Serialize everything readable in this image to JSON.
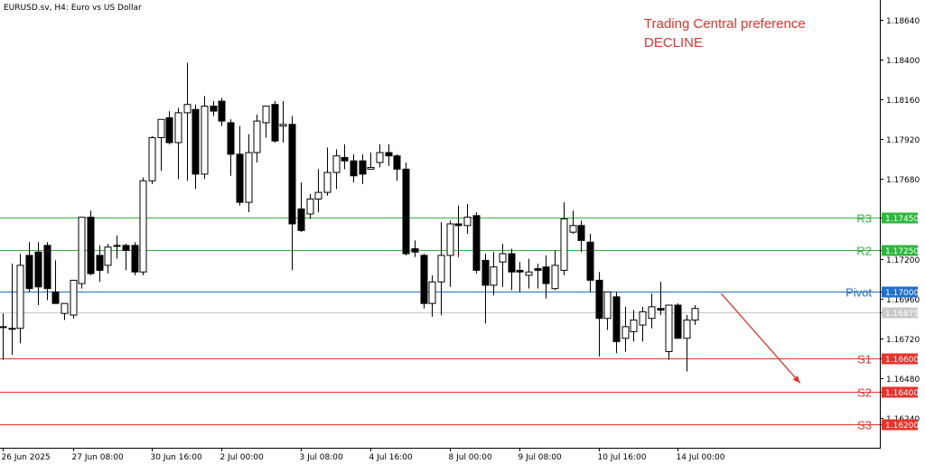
{
  "header": {
    "symbol": "EURUSD.sv, H4:  Euro vs US Dollar"
  },
  "annotation": {
    "line1": "Trading Central preference",
    "line2": "DECLINE",
    "color": "#e8322a"
  },
  "colors": {
    "support": "#e8322a",
    "resistance": "#2db83d",
    "pivot": "#1e6fd0",
    "current": "#c8c8c8",
    "axis": "#000000"
  },
  "chart_data": {
    "type": "candlestick",
    "ylim": [
      1.1606,
      1.1876
    ],
    "y_ticks": [
      "1.18640",
      "1.18400",
      "1.18160",
      "1.17920",
      "1.17680",
      "1.17450",
      "1.17250",
      "1.17200",
      "1.17000",
      "1.16960",
      "1.16875",
      "1.16720",
      "1.16600",
      "1.16480",
      "1.16400",
      "1.16240",
      "1.16200"
    ],
    "x_labels": [
      "26 Jun 2025",
      "27 Jun 08:00",
      "30 Jun 16:00",
      "2 Jul 00:00",
      "3 Jul 08:00",
      "4 Jul 16:00",
      "8 Jul 00:00",
      "9 Jul 08:00",
      "10 Jul 16:00",
      "14 Jul 00:00"
    ],
    "levels": [
      {
        "name": "R3",
        "value": 1.1745,
        "label": "1.17450",
        "kind": "resistance"
      },
      {
        "name": "R2",
        "value": 1.1725,
        "label": "1.17250",
        "kind": "resistance"
      },
      {
        "name": "Pivot",
        "value": 1.17,
        "label": "1.17000",
        "kind": "pivot"
      },
      {
        "name": "S1",
        "value": 1.166,
        "label": "1.16600",
        "kind": "support"
      },
      {
        "name": "S2",
        "value": 1.164,
        "label": "1.16400",
        "kind": "support"
      },
      {
        "name": "S3",
        "value": 1.162,
        "label": "1.16200",
        "kind": "support"
      }
    ],
    "current_price": {
      "value": 1.16875,
      "label": "1.16875"
    },
    "candles": [
      {
        "o": 1.1679,
        "h": 1.1687,
        "l": 1.1659,
        "c": 1.1679
      },
      {
        "o": 1.1678,
        "h": 1.1717,
        "l": 1.1662,
        "c": 1.1678
      },
      {
        "o": 1.1678,
        "h": 1.1723,
        "l": 1.1669,
        "c": 1.1716
      },
      {
        "o": 1.1722,
        "h": 1.173,
        "l": 1.17,
        "c": 1.1702
      },
      {
        "o": 1.1724,
        "h": 1.173,
        "l": 1.1692,
        "c": 1.1703
      },
      {
        "o": 1.1728,
        "h": 1.173,
        "l": 1.1695,
        "c": 1.1702
      },
      {
        "o": 1.17,
        "h": 1.1719,
        "l": 1.1694,
        "c": 1.1693
      },
      {
        "o": 1.1687,
        "h": 1.1693,
        "l": 1.1683,
        "c": 1.1693
      },
      {
        "o": 1.1686,
        "h": 1.1707,
        "l": 1.1684,
        "c": 1.1707
      },
      {
        "o": 1.1705,
        "h": 1.1745,
        "l": 1.1702,
        "c": 1.1745
      },
      {
        "o": 1.1745,
        "h": 1.1749,
        "l": 1.171,
        "c": 1.1711
      },
      {
        "o": 1.1722,
        "h": 1.1728,
        "l": 1.1706,
        "c": 1.1713
      },
      {
        "o": 1.1716,
        "h": 1.1729,
        "l": 1.1711,
        "c": 1.1727
      },
      {
        "o": 1.1728,
        "h": 1.1734,
        "l": 1.172,
        "c": 1.1728
      },
      {
        "o": 1.1728,
        "h": 1.1729,
        "l": 1.1713,
        "c": 1.1725
      },
      {
        "o": 1.1728,
        "h": 1.173,
        "l": 1.171,
        "c": 1.1712
      },
      {
        "o": 1.1712,
        "h": 1.1769,
        "l": 1.171,
        "c": 1.1767
      },
      {
        "o": 1.1767,
        "h": 1.1794,
        "l": 1.1765,
        "c": 1.1793
      },
      {
        "o": 1.1793,
        "h": 1.1803,
        "l": 1.1773,
        "c": 1.1804
      },
      {
        "o": 1.1805,
        "h": 1.1809,
        "l": 1.1789,
        "c": 1.179
      },
      {
        "o": 1.179,
        "h": 1.1811,
        "l": 1.1768,
        "c": 1.1808
      },
      {
        "o": 1.1808,
        "h": 1.1838,
        "l": 1.1767,
        "c": 1.1813
      },
      {
        "o": 1.181,
        "h": 1.1813,
        "l": 1.1762,
        "c": 1.1771
      },
      {
        "o": 1.1771,
        "h": 1.1818,
        "l": 1.1768,
        "c": 1.1812
      },
      {
        "o": 1.1812,
        "h": 1.1815,
        "l": 1.1806,
        "c": 1.1809
      },
      {
        "o": 1.1815,
        "h": 1.1817,
        "l": 1.18,
        "c": 1.1803
      },
      {
        "o": 1.1802,
        "h": 1.1804,
        "l": 1.177,
        "c": 1.1783
      },
      {
        "o": 1.1783,
        "h": 1.18,
        "l": 1.1752,
        "c": 1.1754
      },
      {
        "o": 1.1754,
        "h": 1.1795,
        "l": 1.1748,
        "c": 1.1784
      },
      {
        "o": 1.1784,
        "h": 1.1807,
        "l": 1.1778,
        "c": 1.1803
      },
      {
        "o": 1.1802,
        "h": 1.1812,
        "l": 1.1793,
        "c": 1.1812
      },
      {
        "o": 1.1813,
        "h": 1.1815,
        "l": 1.179,
        "c": 1.1791
      },
      {
        "o": 1.18,
        "h": 1.1815,
        "l": 1.179,
        "c": 1.1801
      },
      {
        "o": 1.1801,
        "h": 1.1806,
        "l": 1.1713,
        "c": 1.1741
      },
      {
        "o": 1.175,
        "h": 1.1766,
        "l": 1.1736,
        "c": 1.1737
      },
      {
        "o": 1.1747,
        "h": 1.1759,
        "l": 1.1744,
        "c": 1.1756
      },
      {
        "o": 1.1756,
        "h": 1.1774,
        "l": 1.1748,
        "c": 1.176
      },
      {
        "o": 1.176,
        "h": 1.1787,
        "l": 1.1758,
        "c": 1.1772
      },
      {
        "o": 1.1772,
        "h": 1.1786,
        "l": 1.1762,
        "c": 1.1782
      },
      {
        "o": 1.1781,
        "h": 1.1789,
        "l": 1.1774,
        "c": 1.1779
      },
      {
        "o": 1.1779,
        "h": 1.1783,
        "l": 1.1766,
        "c": 1.177
      },
      {
        "o": 1.1779,
        "h": 1.1783,
        "l": 1.1765,
        "c": 1.1771
      },
      {
        "o": 1.1774,
        "h": 1.1784,
        "l": 1.1774,
        "c": 1.1775
      },
      {
        "o": 1.1778,
        "h": 1.1789,
        "l": 1.1775,
        "c": 1.1784
      },
      {
        "o": 1.1784,
        "h": 1.1789,
        "l": 1.1776,
        "c": 1.1782
      },
      {
        "o": 1.1782,
        "h": 1.1783,
        "l": 1.1767,
        "c": 1.1774
      },
      {
        "o": 1.1774,
        "h": 1.1778,
        "l": 1.1722,
        "c": 1.1723
      },
      {
        "o": 1.1726,
        "h": 1.1731,
        "l": 1.1721,
        "c": 1.1724
      },
      {
        "o": 1.1722,
        "h": 1.1723,
        "l": 1.169,
        "c": 1.1693
      },
      {
        "o": 1.1693,
        "h": 1.171,
        "l": 1.1685,
        "c": 1.1706
      },
      {
        "o": 1.1706,
        "h": 1.1742,
        "l": 1.1686,
        "c": 1.1722
      },
      {
        "o": 1.1722,
        "h": 1.1743,
        "l": 1.1703,
        "c": 1.1741
      },
      {
        "o": 1.1741,
        "h": 1.1752,
        "l": 1.1721,
        "c": 1.174
      },
      {
        "o": 1.174,
        "h": 1.1753,
        "l": 1.1735,
        "c": 1.1745
      },
      {
        "o": 1.1746,
        "h": 1.1748,
        "l": 1.1711,
        "c": 1.1713
      },
      {
        "o": 1.1719,
        "h": 1.1723,
        "l": 1.1681,
        "c": 1.1704
      },
      {
        "o": 1.1704,
        "h": 1.1724,
        "l": 1.1698,
        "c": 1.1715
      },
      {
        "o": 1.1718,
        "h": 1.1729,
        "l": 1.1703,
        "c": 1.1723
      },
      {
        "o": 1.1723,
        "h": 1.1726,
        "l": 1.1701,
        "c": 1.1712
      },
      {
        "o": 1.1713,
        "h": 1.1718,
        "l": 1.17,
        "c": 1.1712
      },
      {
        "o": 1.171,
        "h": 1.172,
        "l": 1.1702,
        "c": 1.1712
      },
      {
        "o": 1.1714,
        "h": 1.1717,
        "l": 1.1702,
        "c": 1.1713
      },
      {
        "o": 1.1715,
        "h": 1.1722,
        "l": 1.1696,
        "c": 1.1705
      },
      {
        "o": 1.1702,
        "h": 1.1725,
        "l": 1.1701,
        "c": 1.1716
      },
      {
        "o": 1.1713,
        "h": 1.1754,
        "l": 1.171,
        "c": 1.1744
      },
      {
        "o": 1.1736,
        "h": 1.1749,
        "l": 1.1735,
        "c": 1.174
      },
      {
        "o": 1.174,
        "h": 1.1743,
        "l": 1.1724,
        "c": 1.1731
      },
      {
        "o": 1.173,
        "h": 1.1735,
        "l": 1.17,
        "c": 1.1707
      },
      {
        "o": 1.1707,
        "h": 1.1712,
        "l": 1.1661,
        "c": 1.1684
      },
      {
        "o": 1.1684,
        "h": 1.17,
        "l": 1.1677,
        "c": 1.17
      },
      {
        "o": 1.1697,
        "h": 1.17,
        "l": 1.1663,
        "c": 1.167
      },
      {
        "o": 1.1672,
        "h": 1.1691,
        "l": 1.1664,
        "c": 1.1679
      },
      {
        "o": 1.1676,
        "h": 1.1689,
        "l": 1.167,
        "c": 1.1683
      },
      {
        "o": 1.168,
        "h": 1.1691,
        "l": 1.167,
        "c": 1.1688
      },
      {
        "o": 1.1684,
        "h": 1.1699,
        "l": 1.1678,
        "c": 1.1691
      },
      {
        "o": 1.169,
        "h": 1.1706,
        "l": 1.1686,
        "c": 1.1689
      },
      {
        "o": 1.1664,
        "h": 1.1691,
        "l": 1.1659,
        "c": 1.1692
      },
      {
        "o": 1.1692,
        "h": 1.1693,
        "l": 1.1672,
        "c": 1.1672
      },
      {
        "o": 1.1672,
        "h": 1.1686,
        "l": 1.1652,
        "c": 1.1683
      },
      {
        "o": 1.1683,
        "h": 1.1692,
        "l": 1.168,
        "c": 1.169
      }
    ],
    "forecast_arrow": {
      "start_index": 82,
      "start_value": 1.1699,
      "end_index": 91,
      "end_value": 1.1645
    }
  }
}
